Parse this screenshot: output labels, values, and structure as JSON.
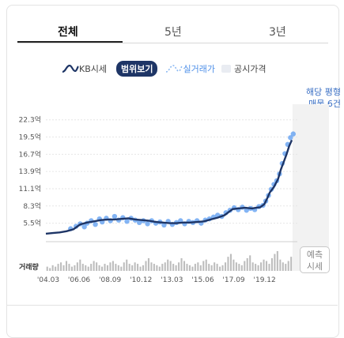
{
  "tabs": [
    {
      "label": "전체",
      "active": true
    },
    {
      "label": "5년",
      "active": false
    },
    {
      "label": "3년",
      "active": false
    }
  ],
  "legend": {
    "kb_label": "KB시세",
    "range_label": "범위보기",
    "real_label": "실거래가",
    "public_label": "공시가격"
  },
  "side_info": {
    "line1": "해당 평형",
    "line2": "매물 6건"
  },
  "forecast_button": {
    "line1": "예측",
    "line2": "시세"
  },
  "colors": {
    "kb_line": "#1e3566",
    "real_dots": "#5a9bf0",
    "volume_bars": "#bdbdbd",
    "forecast_band": "#f2f2f2"
  },
  "chart_data": {
    "type": "line",
    "y_tick_labels": [
      "22.3억",
      "19.5억",
      "16.7억",
      "13.9억",
      "11.1억",
      "8.3억",
      "5.5억"
    ],
    "y_ticks": [
      22.3,
      19.5,
      16.7,
      13.9,
      11.1,
      8.3,
      5.5
    ],
    "ylim": [
      2.5,
      23.8
    ],
    "x_tick_labels": [
      "'04.03",
      "'06.06",
      "'08.09",
      "'10.12",
      "'13.03",
      "'15.06",
      "'17.09",
      "'19.12"
    ],
    "x_ticks": [
      2004.17,
      2006.42,
      2008.67,
      2010.92,
      2013.17,
      2015.42,
      2017.67,
      2019.92
    ],
    "xlim": [
      2004.0,
      2022.3
    ],
    "volume_label": "거래량",
    "grid": true,
    "series": [
      {
        "name": "KB시세",
        "x": [
          2004.0,
          2004.5,
          2005.0,
          2005.5,
          2006.0,
          2006.5,
          2007.0,
          2007.5,
          2008.0,
          2008.5,
          2009.0,
          2009.5,
          2010.0,
          2010.5,
          2011.0,
          2011.5,
          2012.0,
          2012.5,
          2013.0,
          2013.5,
          2014.0,
          2014.5,
          2015.0,
          2015.5,
          2016.0,
          2016.5,
          2017.0,
          2017.3,
          2017.6,
          2018.0,
          2018.5,
          2019.0,
          2019.3,
          2019.6,
          2019.9,
          2020.1,
          2020.3,
          2020.6,
          2020.9,
          2021.1,
          2021.3,
          2021.5,
          2021.7,
          2021.9
        ],
        "values": [
          3.8,
          3.9,
          4.0,
          4.2,
          4.5,
          5.3,
          5.6,
          5.8,
          6.0,
          6.1,
          6.1,
          6.2,
          6.3,
          6.1,
          6.0,
          5.9,
          5.7,
          5.6,
          5.5,
          5.5,
          5.6,
          5.6,
          5.7,
          5.8,
          6.1,
          6.4,
          6.8,
          7.3,
          7.8,
          7.9,
          8.0,
          7.9,
          8.0,
          8.1,
          8.6,
          9.5,
          10.5,
          11.4,
          12.7,
          14.2,
          15.4,
          16.6,
          18.0,
          19.0
        ]
      },
      {
        "name": "실거래가",
        "x": [
          2005.8,
          2006.2,
          2006.5,
          2006.8,
          2007.0,
          2007.3,
          2007.6,
          2007.9,
          2008.1,
          2008.4,
          2008.7,
          2009.0,
          2009.3,
          2009.6,
          2009.9,
          2010.2,
          2010.5,
          2010.8,
          2011.1,
          2011.4,
          2011.7,
          2012.0,
          2012.3,
          2012.6,
          2012.9,
          2013.2,
          2013.5,
          2013.8,
          2014.1,
          2014.4,
          2014.7,
          2015.0,
          2015.3,
          2015.6,
          2015.9,
          2016.2,
          2016.5,
          2016.8,
          2017.1,
          2017.4,
          2017.7,
          2018.0,
          2018.3,
          2018.6,
          2018.9,
          2019.2,
          2019.5,
          2019.8,
          2020.0,
          2020.2,
          2020.4,
          2020.6,
          2020.8,
          2021.0,
          2021.2,
          2021.4,
          2021.6,
          2021.8,
          2022.0
        ],
        "values": [
          4.6,
          5.0,
          5.4,
          4.9,
          5.5,
          5.9,
          5.3,
          6.2,
          5.7,
          6.3,
          5.9,
          6.6,
          6.0,
          6.4,
          5.8,
          6.3,
          6.0,
          5.6,
          5.9,
          5.4,
          5.9,
          5.5,
          5.7,
          5.2,
          5.8,
          5.3,
          5.6,
          5.9,
          5.4,
          5.8,
          5.6,
          5.9,
          5.5,
          6.0,
          6.2,
          6.5,
          6.8,
          6.6,
          7.2,
          7.6,
          8.0,
          7.7,
          8.1,
          7.6,
          7.9,
          7.7,
          8.2,
          8.4,
          9.1,
          10.0,
          11.0,
          11.8,
          12.4,
          13.5,
          15.2,
          16.8,
          18.3,
          19.4,
          20.0
        ]
      }
    ],
    "volume": [
      3,
      2,
      4,
      3,
      5,
      6,
      4,
      7,
      5,
      3,
      4,
      6,
      8,
      5,
      4,
      3,
      5,
      7,
      6,
      4,
      3,
      5,
      4,
      6,
      7,
      5,
      4,
      3,
      6,
      8,
      5,
      4,
      6,
      5,
      3,
      4,
      7,
      9,
      6,
      5,
      4,
      3,
      5,
      6,
      8,
      7,
      5,
      4,
      6,
      9,
      7,
      5,
      4,
      3,
      5,
      6,
      4,
      7,
      8,
      5,
      4,
      6,
      5,
      3,
      4,
      6,
      10,
      12,
      8,
      6,
      5,
      4,
      7,
      9,
      11,
      6,
      5,
      4,
      6,
      8,
      7,
      5,
      9,
      12,
      14,
      8,
      6,
      5,
      7,
      10
    ],
    "forecast_start_x": 2021.95
  }
}
